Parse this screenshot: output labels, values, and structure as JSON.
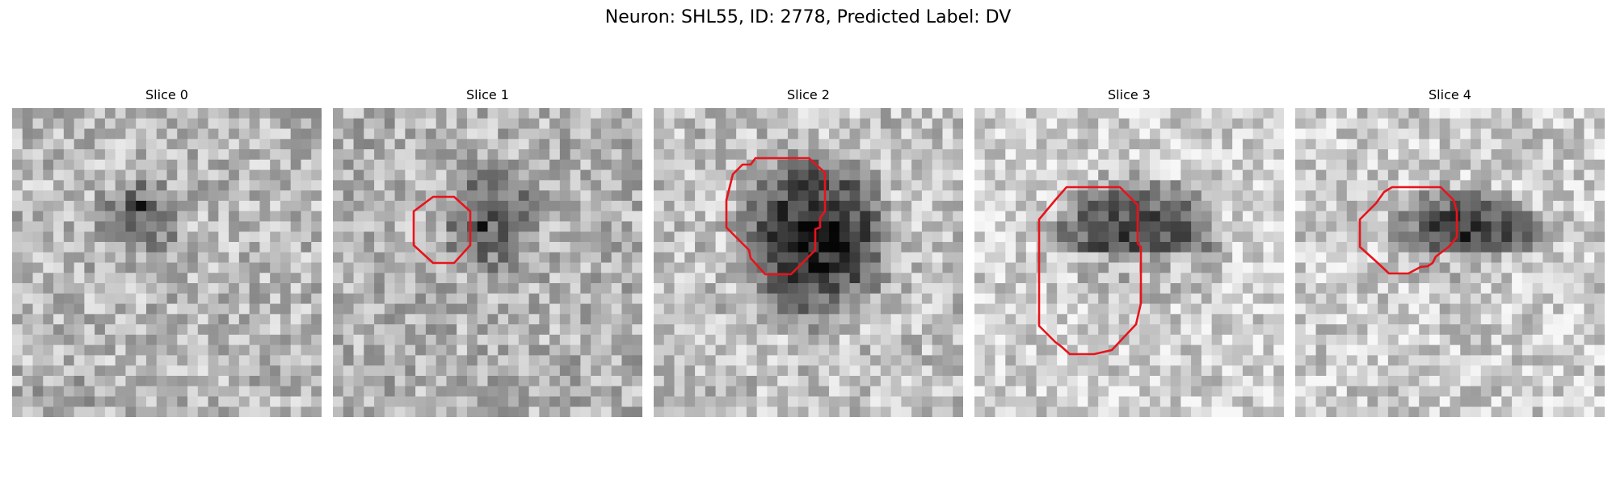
{
  "figure": {
    "title": "Neuron: SHL55, ID: 2778, Predicted Label: DV"
  },
  "colors": {
    "contour": "#e8131b",
    "background": "#ffffff"
  },
  "panels": [
    {
      "title": "Slice 0",
      "has_contour": false
    },
    {
      "title": "Slice 1",
      "has_contour": true
    },
    {
      "title": "Slice 2",
      "has_contour": true
    },
    {
      "title": "Slice 3",
      "has_contour": true
    },
    {
      "title": "Slice 4",
      "has_contour": true
    }
  ]
}
